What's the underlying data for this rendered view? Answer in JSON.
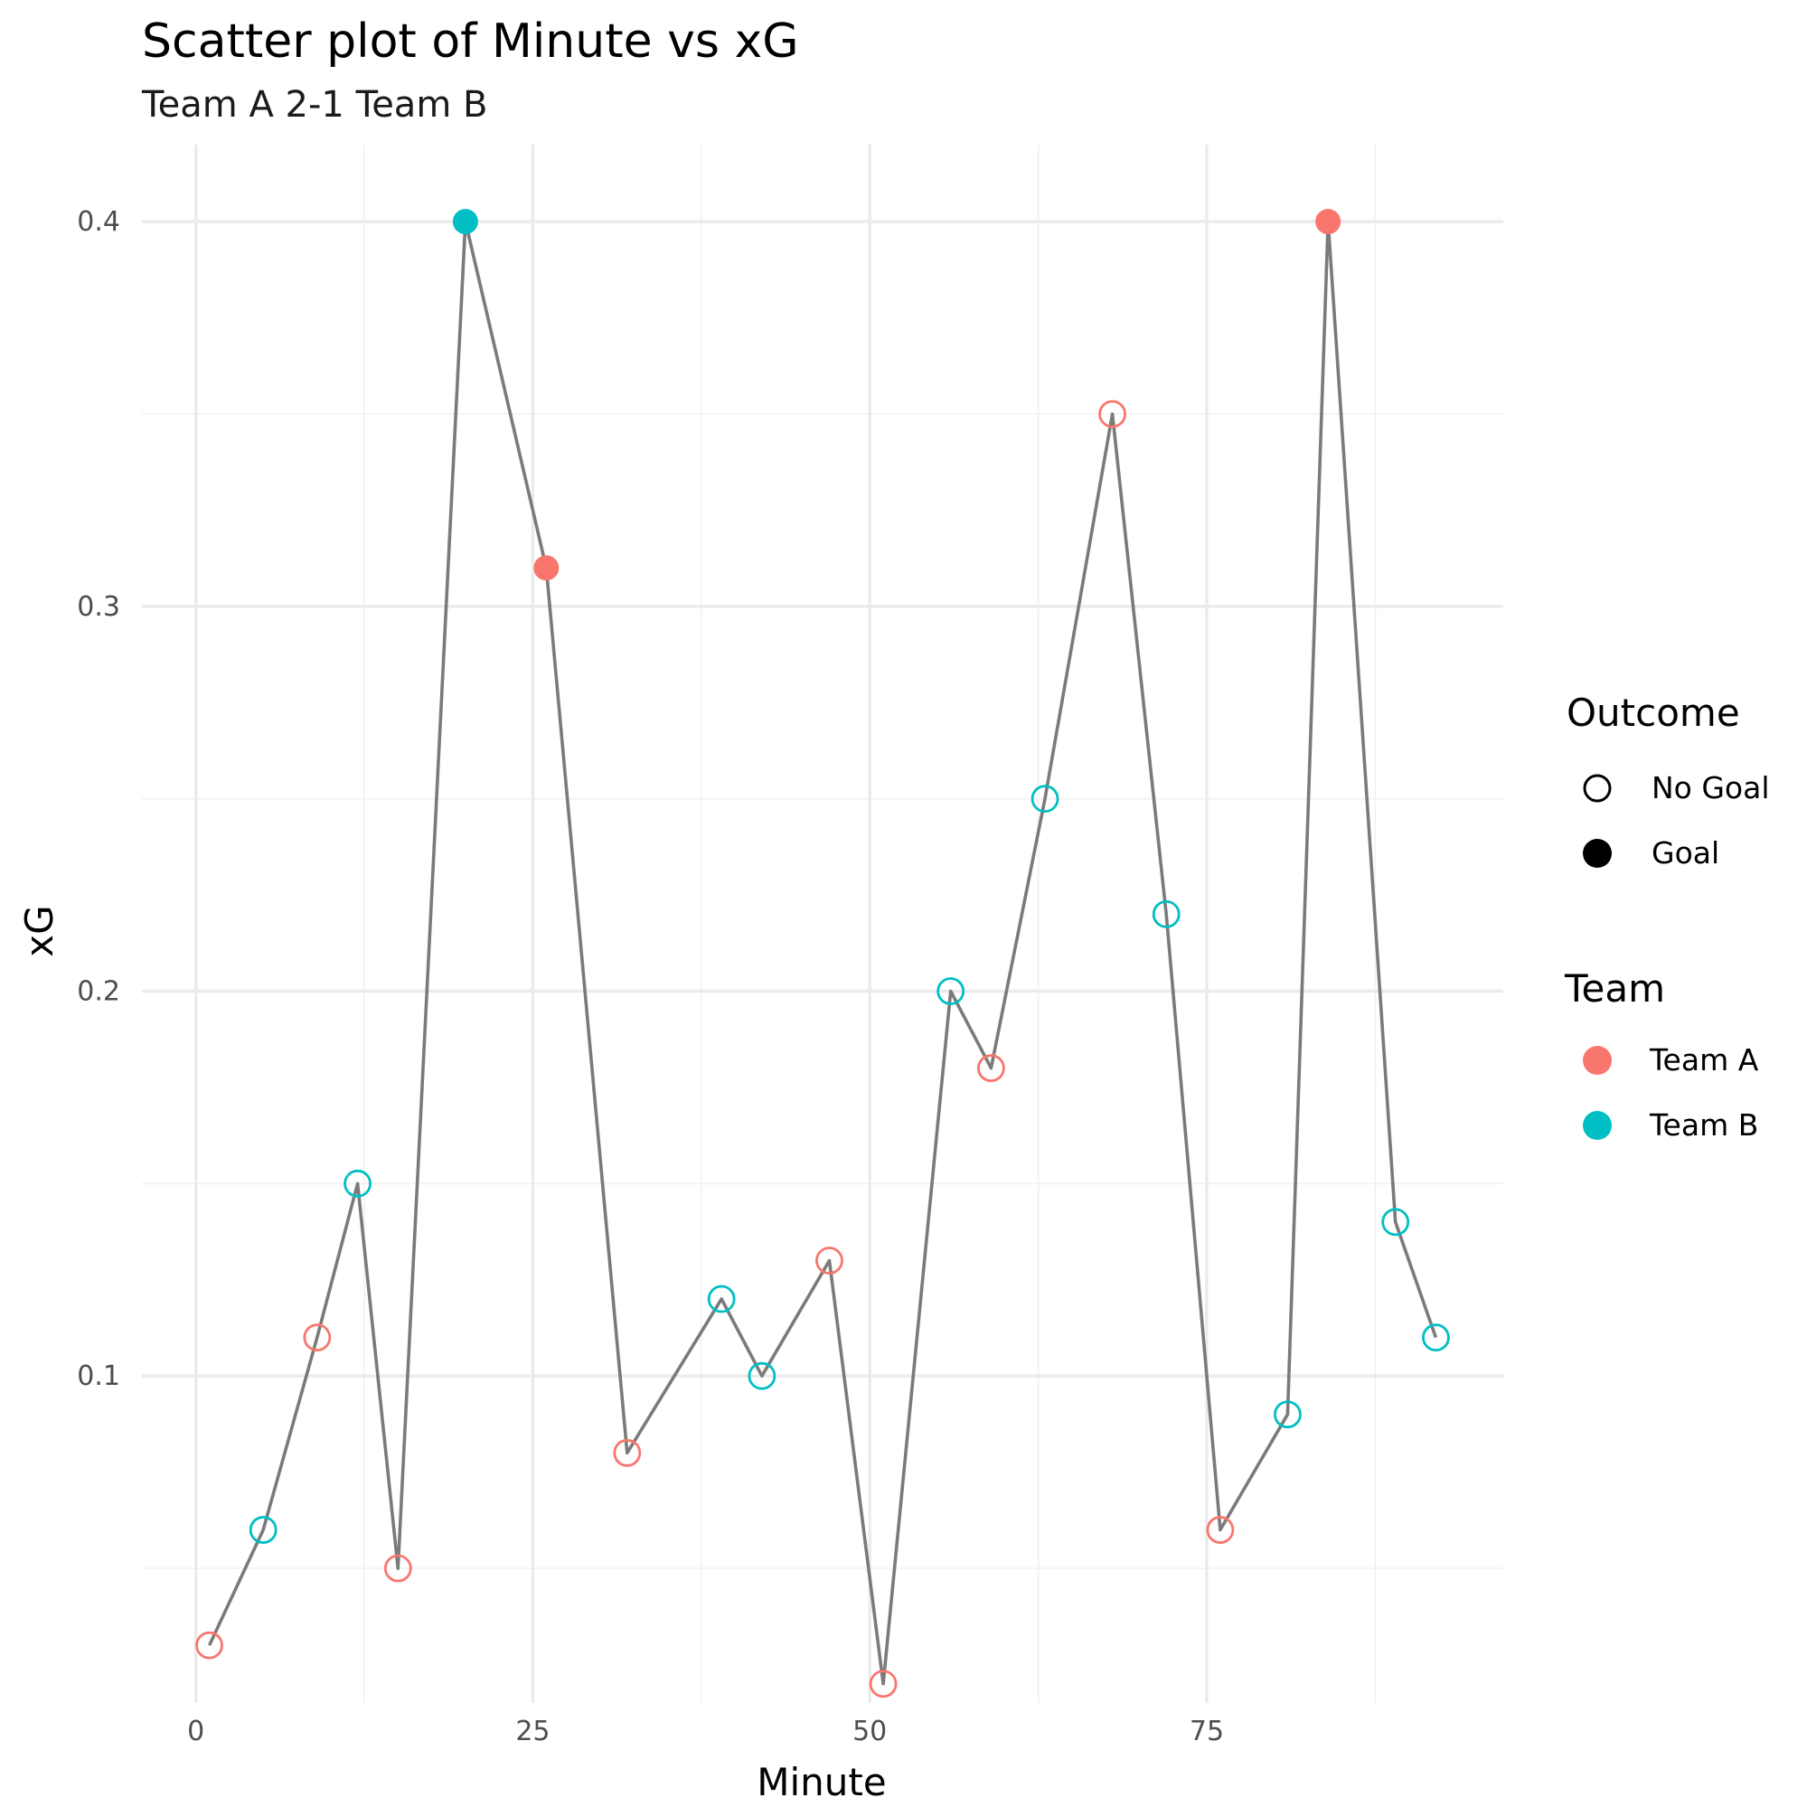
{
  "chart_data": {
    "type": "scatter",
    "title": "Scatter plot of Minute vs xG",
    "subtitle": "Team A 2-1 Team B",
    "xlabel": "Minute",
    "ylabel": "xG",
    "xlim": [
      -4,
      97
    ],
    "ylim": [
      0.015,
      0.42
    ],
    "x_ticks": [
      0,
      25,
      50,
      75
    ],
    "x_minor_ticks": [
      12.5,
      37.5,
      62.5,
      87.5
    ],
    "y_ticks": [
      0.1,
      0.2,
      0.3,
      0.4
    ],
    "y_minor_ticks": [
      0.05,
      0.15,
      0.25,
      0.35
    ],
    "grid": true,
    "line_color": "#7a7a7a",
    "points": [
      {
        "minute": 1,
        "xg": 0.03,
        "team": "Team A",
        "outcome": "No Goal"
      },
      {
        "minute": 5,
        "xg": 0.06,
        "team": "Team B",
        "outcome": "No Goal"
      },
      {
        "minute": 9,
        "xg": 0.11,
        "team": "Team A",
        "outcome": "No Goal"
      },
      {
        "minute": 12,
        "xg": 0.15,
        "team": "Team B",
        "outcome": "No Goal"
      },
      {
        "minute": 15,
        "xg": 0.05,
        "team": "Team A",
        "outcome": "No Goal"
      },
      {
        "minute": 20,
        "xg": 0.4,
        "team": "Team B",
        "outcome": "Goal"
      },
      {
        "minute": 26,
        "xg": 0.31,
        "team": "Team A",
        "outcome": "Goal"
      },
      {
        "minute": 32,
        "xg": 0.08,
        "team": "Team A",
        "outcome": "No Goal"
      },
      {
        "minute": 39,
        "xg": 0.12,
        "team": "Team B",
        "outcome": "No Goal"
      },
      {
        "minute": 42,
        "xg": 0.1,
        "team": "Team B",
        "outcome": "No Goal"
      },
      {
        "minute": 47,
        "xg": 0.13,
        "team": "Team A",
        "outcome": "No Goal"
      },
      {
        "minute": 51,
        "xg": 0.02,
        "team": "Team A",
        "outcome": "No Goal"
      },
      {
        "minute": 56,
        "xg": 0.2,
        "team": "Team B",
        "outcome": "No Goal"
      },
      {
        "minute": 59,
        "xg": 0.18,
        "team": "Team A",
        "outcome": "No Goal"
      },
      {
        "minute": 63,
        "xg": 0.25,
        "team": "Team B",
        "outcome": "No Goal"
      },
      {
        "minute": 68,
        "xg": 0.35,
        "team": "Team A",
        "outcome": "No Goal"
      },
      {
        "minute": 72,
        "xg": 0.22,
        "team": "Team B",
        "outcome": "No Goal"
      },
      {
        "minute": 76,
        "xg": 0.06,
        "team": "Team A",
        "outcome": "No Goal"
      },
      {
        "minute": 81,
        "xg": 0.09,
        "team": "Team B",
        "outcome": "No Goal"
      },
      {
        "minute": 84,
        "xg": 0.4,
        "team": "Team A",
        "outcome": "Goal"
      },
      {
        "minute": 89,
        "xg": 0.14,
        "team": "Team B",
        "outcome": "No Goal"
      },
      {
        "minute": 92,
        "xg": 0.11,
        "team": "Team B",
        "outcome": "No Goal"
      }
    ],
    "legend": {
      "placement": "right",
      "outcome": {
        "title": "Outcome",
        "items": [
          {
            "label": "No Goal",
            "style": "hollow",
            "color": "#000000"
          },
          {
            "label": "Goal",
            "style": "filled",
            "color": "#000000"
          }
        ]
      },
      "team": {
        "title": "Team",
        "items": [
          {
            "label": "Team A",
            "color": "#F8766D"
          },
          {
            "label": "Team B",
            "color": "#00BFC4"
          }
        ]
      }
    }
  }
}
